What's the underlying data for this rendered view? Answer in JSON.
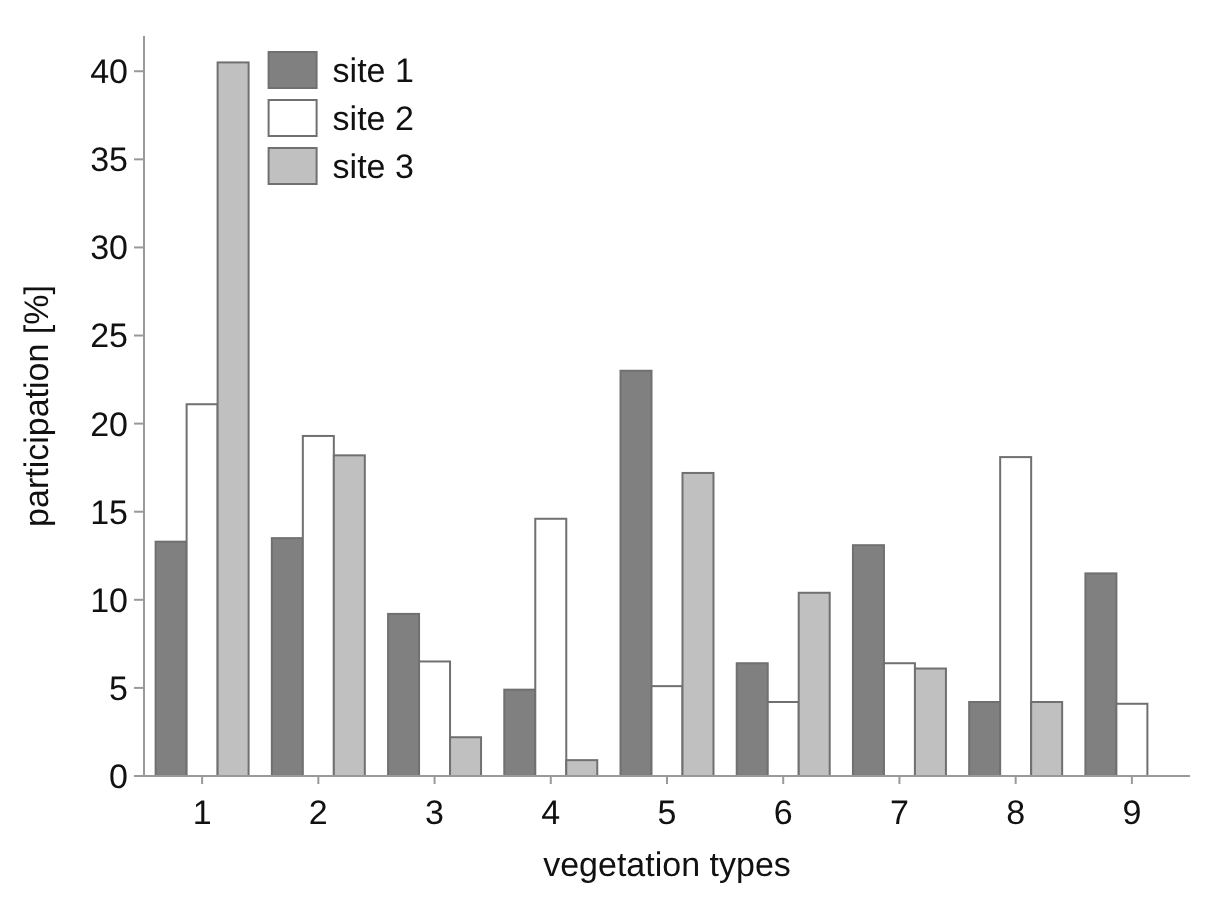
{
  "chart_data": {
    "type": "bar",
    "xlabel": "vegetation types",
    "ylabel": "participation [%]",
    "categories": [
      "1",
      "2",
      "3",
      "4",
      "5",
      "6",
      "7",
      "8",
      "9"
    ],
    "series": [
      {
        "name": "site 1",
        "color": "#808080",
        "values": [
          13.3,
          13.5,
          9.2,
          4.9,
          23.0,
          6.4,
          13.1,
          4.2,
          11.5
        ]
      },
      {
        "name": "site 2",
        "color": "#ffffff",
        "values": [
          21.1,
          19.3,
          6.5,
          14.6,
          5.1,
          4.2,
          6.4,
          18.1,
          4.1
        ]
      },
      {
        "name": "site 3",
        "color": "#c0c0c0",
        "values": [
          40.5,
          18.2,
          2.2,
          0.9,
          17.2,
          10.4,
          6.1,
          4.2,
          null
        ]
      }
    ],
    "ylim": [
      0,
      42
    ],
    "yticks": [
      0,
      5,
      10,
      15,
      20,
      25,
      30,
      35,
      40
    ],
    "grid": false,
    "legend": "top left"
  }
}
